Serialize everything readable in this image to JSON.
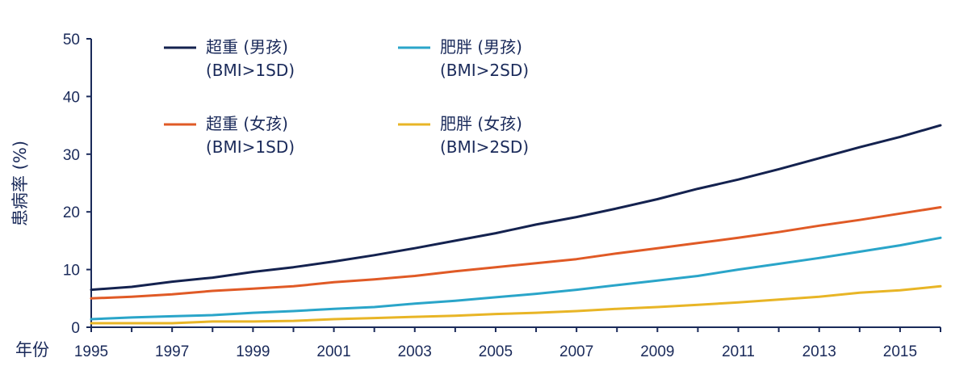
{
  "chart_data": {
    "type": "line",
    "title": "",
    "xlabel": "年份",
    "ylabel": "患病率 (%)",
    "xlim": [
      1995,
      2016
    ],
    "ylim": [
      0,
      50
    ],
    "yticks": [
      0,
      10,
      20,
      30,
      40,
      50
    ],
    "xticks": [
      1995,
      1997,
      1999,
      2001,
      2003,
      2005,
      2007,
      2009,
      2011,
      2013,
      2015
    ],
    "x": [
      1995,
      1996,
      1997,
      1998,
      1999,
      2000,
      2001,
      2002,
      2003,
      2004,
      2005,
      2006,
      2007,
      2008,
      2009,
      2010,
      2011,
      2012,
      2013,
      2014,
      2015,
      2016
    ],
    "series": [
      {
        "name": "超重 (男孩)",
        "subname": "(BMI>1SD)",
        "color": "#14224f",
        "values": [
          6.5,
          7.0,
          7.9,
          8.6,
          9.6,
          10.4,
          11.4,
          12.5,
          13.7,
          15.0,
          16.3,
          17.8,
          19.1,
          20.6,
          22.2,
          24.0,
          25.6,
          27.4,
          29.3,
          31.2,
          33.0,
          35.0
        ]
      },
      {
        "name": "肥胖 (男孩)",
        "subname": "(BMI>2SD)",
        "color": "#2aa5c9",
        "values": [
          1.4,
          1.7,
          1.9,
          2.1,
          2.5,
          2.8,
          3.2,
          3.5,
          4.1,
          4.6,
          5.2,
          5.8,
          6.5,
          7.3,
          8.1,
          8.9,
          10.0,
          11.0,
          12.0,
          13.1,
          14.2,
          15.5
        ]
      },
      {
        "name": "超重 (女孩)",
        "subname": "(BMI>1SD)",
        "color": "#e05a26",
        "values": [
          5.0,
          5.3,
          5.7,
          6.3,
          6.7,
          7.1,
          7.8,
          8.3,
          8.9,
          9.7,
          10.4,
          11.1,
          11.8,
          12.8,
          13.7,
          14.6,
          15.5,
          16.5,
          17.6,
          18.6,
          19.7,
          20.8
        ]
      },
      {
        "name": "肥胖 (女孩)",
        "subname": "(BMI>2SD)",
        "color": "#e8b526",
        "values": [
          0.7,
          0.7,
          0.7,
          1.0,
          1.0,
          1.1,
          1.4,
          1.6,
          1.8,
          2.0,
          2.3,
          2.5,
          2.8,
          3.2,
          3.5,
          3.9,
          4.3,
          4.8,
          5.3,
          6.0,
          6.4,
          7.1
        ]
      }
    ],
    "legend_placement": "top-left, two columns"
  }
}
